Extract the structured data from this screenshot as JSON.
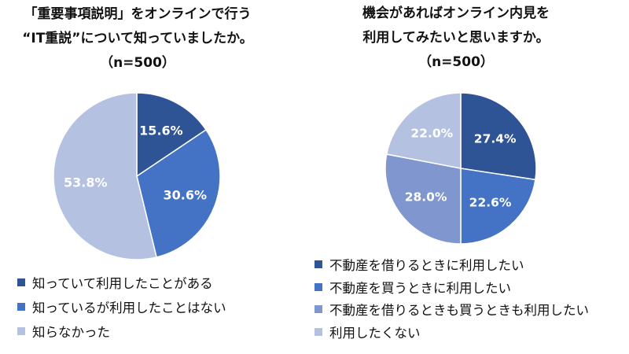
{
  "chart_data": [
    {
      "type": "pie",
      "title_lines": [
        "「重要事項説明」をオンラインで行う",
        "“IT重説”について知っていましたか。",
        "（n=500）"
      ],
      "slices": [
        {
          "label": "知っていて利用したことがある",
          "value": 15.6,
          "value_label": "15.6%",
          "color": "#2f5496"
        },
        {
          "label": "知っているが利用したことはない",
          "value": 30.6,
          "value_label": "30.6%",
          "color": "#4472c4"
        },
        {
          "label": "知らなかった",
          "value": 53.8,
          "value_label": "53.8%",
          "color": "#b4c1e1"
        }
      ],
      "start": "12 o'clock",
      "direction": "clockwise",
      "legend_position": "bottom"
    },
    {
      "type": "pie",
      "title_lines": [
        "機会があればオンライン内見を",
        "利用してみたいと思いますか。",
        "（n=500）"
      ],
      "slices": [
        {
          "label": "不動産を借りるときに利用したい",
          "value": 27.4,
          "value_label": "27.4%",
          "color": "#2f5496"
        },
        {
          "label": "不動産を買うときに利用したい",
          "value": 22.6,
          "value_label": "22.6%",
          "color": "#4472c4"
        },
        {
          "label": "不動産を借りるときも買うときも利用したい",
          "value": 28.0,
          "value_label": "28.0%",
          "color": "#7f96cf"
        },
        {
          "label": "利用したくない",
          "value": 22.0,
          "value_label": "22.0%",
          "color": "#b4c1e1"
        }
      ],
      "start": "12 o'clock",
      "direction": "clockwise",
      "legend_position": "bottom"
    }
  ]
}
